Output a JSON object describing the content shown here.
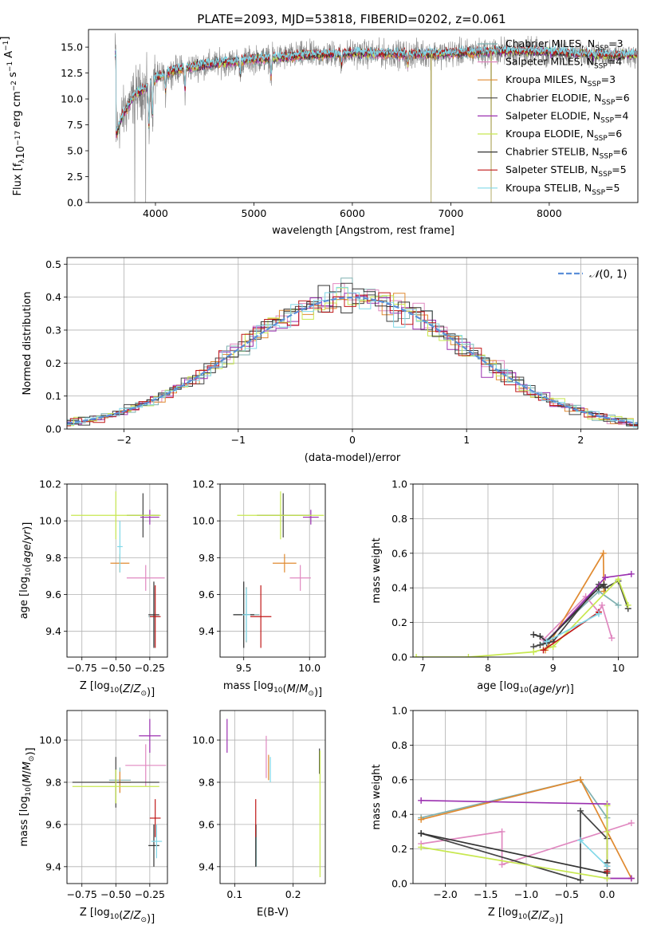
{
  "title": "PLATE=2093, MJD=53818, FIBERID=0202, z=0.061",
  "colors": {
    "Chabrier MILES": "#7fb0b0",
    "Salpeter MILES": "#e088c0",
    "Kroupa MILES": "#e08a30",
    "Chabrier ELODIE": "#444444",
    "Salpeter ELODIE": "#9b30b0",
    "Kroupa ELODIE": "#c8e850",
    "Chabrier STELIB": "#333333",
    "Salpeter STELIB": "#c01818",
    "Kroupa STELIB": "#80d8e8",
    "data": "#808080",
    "normal": "#5b8fd8"
  },
  "legend_labels": [
    {
      "pre": "Chabrier MILES, N",
      "sub": "SSP",
      "post": "=3"
    },
    {
      "pre": "Salpeter MILES, N",
      "sub": "SSP",
      "post": "=4"
    },
    {
      "pre": "Kroupa MILES, N",
      "sub": "SSP",
      "post": "=3"
    },
    {
      "pre": "Chabrier ELODIE, N",
      "sub": "SSP",
      "post": "=6"
    },
    {
      "pre": "Salpeter ELODIE, N",
      "sub": "SSP",
      "post": "=4"
    },
    {
      "pre": "Kroupa ELODIE, N",
      "sub": "SSP",
      "post": "=6"
    },
    {
      "pre": "Chabrier STELIB, N",
      "sub": "SSP",
      "post": "=6"
    },
    {
      "pre": "Salpeter STELIB, N",
      "sub": "SSP",
      "post": "=5"
    },
    {
      "pre": "Kroupa STELIB, N",
      "sub": "SSP",
      "post": "=5"
    }
  ],
  "chart_data": [
    {
      "id": "spectrum",
      "type": "line",
      "xlabel": "wavelength [Angstrom, rest frame]",
      "ylabel": "Flux [f_λ 10^-17 erg cm^-2 s^-1 A^-1]",
      "xlim": [
        3320,
        8900
      ],
      "ylim": [
        0,
        16.7
      ],
      "xticks": [
        4000,
        5000,
        6000,
        7000,
        8000
      ],
      "yticks": [
        "0.0",
        "2.5",
        "5.0",
        "7.5",
        "10.0",
        "12.5",
        "15.0"
      ],
      "ytick_values": [
        0,
        2.5,
        5,
        7.5,
        10,
        12.5,
        15
      ],
      "envelope": [
        [
          3600,
          6.5
        ],
        [
          3650,
          8
        ],
        [
          3700,
          9
        ],
        [
          3800,
          10.5
        ],
        [
          3900,
          11
        ],
        [
          4000,
          12
        ],
        [
          4200,
          12.8
        ],
        [
          4500,
          13.3
        ],
        [
          5000,
          13.8
        ],
        [
          5500,
          14.2
        ],
        [
          6000,
          14.4
        ],
        [
          6500,
          14.3
        ],
        [
          7000,
          14.4
        ],
        [
          7500,
          14.6
        ],
        [
          8000,
          14.5
        ],
        [
          8500,
          14.2
        ],
        [
          8890,
          14.2
        ]
      ],
      "dropouts": [
        [
          3790,
          0
        ],
        [
          3900,
          0
        ],
        [
          6800,
          0
        ],
        [
          7410,
          0
        ]
      ],
      "grid": false,
      "legend_position": "upper-right"
    },
    {
      "id": "histogram",
      "type": "step",
      "xlabel": "(data-model)/error",
      "ylabel": "Normed distribution",
      "xlim": [
        -2.5,
        2.5
      ],
      "ylim": [
        0,
        0.52
      ],
      "xticks": [
        -2,
        -1,
        0,
        1,
        2
      ],
      "yticks": [
        "0.0",
        "0.1",
        "0.2",
        "0.3",
        "0.4",
        "0.5"
      ],
      "ytick_values": [
        0,
        0.1,
        0.2,
        0.3,
        0.4,
        0.5
      ],
      "bin_width": 0.1,
      "normal_label": "N(0,1)",
      "grid": true,
      "legend_position": "upper-right"
    },
    {
      "id": "age_vs_Z",
      "type": "errorbar",
      "xlabel": "Z [log10(Z/Z⊙)]",
      "ylabel": "age [log10(age/yr)]",
      "xlim": [
        -0.86,
        -0.12
      ],
      "ylim": [
        9.26,
        10.2
      ],
      "xticks": [
        "-0.75",
        "-0.50",
        "-0.25"
      ],
      "xtick_values": [
        -0.75,
        -0.5,
        -0.25
      ],
      "yticks": [
        "9.4",
        "9.6",
        "9.8",
        "10.0",
        "10.2"
      ],
      "ytick_values": [
        9.4,
        9.6,
        9.8,
        10.0,
        10.2
      ],
      "points": [
        {
          "model": "Chabrier MILES",
          "x": -0.22,
          "y": 9.48,
          "xerr": 0.04,
          "yerr": 0.16
        },
        {
          "model": "Salpeter MILES",
          "x": -0.28,
          "y": 9.69,
          "xerr": 0.14,
          "yerr": 0.07
        },
        {
          "model": "Kroupa MILES",
          "x": -0.47,
          "y": 9.77,
          "xerr": 0.07,
          "yerr": 0.05
        },
        {
          "model": "Chabrier ELODIE",
          "x": -0.3,
          "y": 10.03,
          "xerr": 0.12,
          "yerr": 0.12
        },
        {
          "model": "Salpeter ELODIE",
          "x": -0.25,
          "y": 10.02,
          "xerr": 0.07,
          "yerr": 0.04
        },
        {
          "model": "Kroupa ELODIE",
          "x": -0.5,
          "y": 10.03,
          "xerr": 0.33,
          "yerr": 0.13
        },
        {
          "model": "Chabrier STELIB",
          "x": -0.22,
          "y": 9.49,
          "xerr": 0.04,
          "yerr": 0.18
        },
        {
          "model": "Salpeter STELIB",
          "x": -0.21,
          "y": 9.48,
          "xerr": 0.04,
          "yerr": 0.17
        },
        {
          "model": "Kroupa STELIB",
          "x": -0.47,
          "y": 9.86,
          "xerr": 0.02,
          "yerr": 0.14
        }
      ]
    },
    {
      "id": "age_vs_mass",
      "type": "errorbar",
      "xlabel": "mass [log10(M/M⊙)]",
      "ylabel": "",
      "xlim": [
        9.32,
        10.12
      ],
      "ylim": [
        9.26,
        10.2
      ],
      "xticks": [
        "9.5",
        "10.0"
      ],
      "xtick_values": [
        9.5,
        10.0
      ],
      "yticks": [
        "9.4",
        "9.6",
        "9.8",
        "10.0",
        "10.2"
      ],
      "ytick_values": [
        9.4,
        9.6,
        9.8,
        10.0,
        10.2
      ],
      "points": [
        {
          "model": "Chabrier MILES",
          "x": 9.52,
          "y": 9.49,
          "xerr": 0.1,
          "yerr": 0.15
        },
        {
          "model": "Salpeter MILES",
          "x": 9.93,
          "y": 9.69,
          "xerr": 0.08,
          "yerr": 0.07
        },
        {
          "model": "Kroupa MILES",
          "x": 9.81,
          "y": 9.77,
          "xerr": 0.09,
          "yerr": 0.05
        },
        {
          "model": "Chabrier ELODIE",
          "x": 9.8,
          "y": 10.03,
          "xerr": 0.2,
          "yerr": 0.12
        },
        {
          "model": "Salpeter ELODIE",
          "x": 10.01,
          "y": 10.02,
          "xerr": 0.06,
          "yerr": 0.04
        },
        {
          "model": "Kroupa ELODIE",
          "x": 9.78,
          "y": 10.03,
          "xerr": 0.33,
          "yerr": 0.13
        },
        {
          "model": "Chabrier STELIB",
          "x": 9.5,
          "y": 9.49,
          "xerr": 0.08,
          "yerr": 0.18
        },
        {
          "model": "Salpeter STELIB",
          "x": 9.63,
          "y": 9.48,
          "xerr": 0.08,
          "yerr": 0.17
        },
        {
          "model": "Kroupa STELIB",
          "x": 9.52,
          "y": 9.49,
          "xerr": 0.03,
          "yerr": 0.14
        }
      ]
    },
    {
      "id": "weight_vs_age",
      "type": "line",
      "xlabel": "age [log10(age/yr)]",
      "ylabel": "mass weight",
      "xlim": [
        6.85,
        10.3
      ],
      "ylim": [
        0,
        1.0
      ],
      "xticks": [
        "7",
        "8",
        "9",
        "10"
      ],
      "xtick_values": [
        7,
        8,
        9,
        10
      ],
      "yticks": [
        "0.0",
        "0.2",
        "0.4",
        "0.6",
        "0.8",
        "1.0"
      ],
      "ytick_values": [
        0,
        0.2,
        0.4,
        0.6,
        0.8,
        1.0
      ],
      "series": [
        {
          "model": "Chabrier MILES",
          "x": [
            8.85,
            9.7,
            10.0
          ],
          "y": [
            0.08,
            0.38,
            0.3
          ]
        },
        {
          "model": "Salpeter MILES",
          "x": [
            8.85,
            9.5,
            9.7,
            9.75,
            9.9
          ],
          "y": [
            0.1,
            0.35,
            0.26,
            0.3,
            0.11
          ]
        },
        {
          "model": "Kroupa MILES",
          "x": [
            8.88,
            9.77,
            9.78
          ],
          "y": [
            0.04,
            0.6,
            0.38
          ]
        },
        {
          "model": "Chabrier ELODIE",
          "x": [
            8.7,
            8.8,
            8.9,
            9.0,
            9.7,
            9.8,
            10.0,
            10.15
          ],
          "y": [
            0.06,
            0.07,
            0.08,
            0.09,
            0.42,
            0.4,
            0.44,
            0.28
          ]
        },
        {
          "model": "Salpeter ELODIE",
          "x": [
            8.9,
            9.8,
            10.2
          ],
          "y": [
            0.09,
            0.46,
            0.48
          ]
        },
        {
          "model": "Kroupa ELODIE",
          "x": [
            6.9,
            7.7,
            8.7,
            9.0,
            10.0,
            10.15
          ],
          "y": [
            0.0,
            0.0,
            0.03,
            0.06,
            0.45,
            0.3
          ]
        },
        {
          "model": "Chabrier STELIB",
          "x": [
            8.7,
            8.8,
            8.9,
            9.7,
            9.78
          ],
          "y": [
            0.13,
            0.12,
            0.09,
            0.4,
            0.42
          ]
        },
        {
          "model": "Salpeter STELIB",
          "x": [
            8.85,
            9.7
          ],
          "y": [
            0.04,
            0.26
          ]
        },
        {
          "model": "Kroupa STELIB",
          "x": [
            8.9,
            9.7
          ],
          "y": [
            0.09,
            0.25
          ]
        }
      ]
    },
    {
      "id": "mass_vs_Z",
      "type": "errorbar",
      "xlabel": "Z [log10(Z/Z⊙)]",
      "ylabel": "mass [log10(M/M⊙)]",
      "xlim": [
        -0.86,
        -0.12
      ],
      "ylim": [
        9.32,
        10.14
      ],
      "xticks": [
        "-0.75",
        "-0.50",
        "-0.25"
      ],
      "xtick_values": [
        -0.75,
        -0.5,
        -0.25
      ],
      "yticks": [
        "9.4",
        "9.6",
        "9.8",
        "10.0"
      ],
      "ytick_values": [
        9.4,
        9.6,
        9.8,
        10.0
      ],
      "points": [
        {
          "model": "Chabrier MILES",
          "x": -0.47,
          "y": 9.81,
          "xerr": 0.08,
          "yerr": 0.06
        },
        {
          "model": "Salpeter MILES",
          "x": -0.28,
          "y": 9.88,
          "xerr": 0.15,
          "yerr": 0.1
        },
        {
          "model": "Kroupa MILES",
          "x": -0.47,
          "y": 9.8,
          "xerr": 0.08,
          "yerr": 0.05
        },
        {
          "model": "Chabrier ELODIE",
          "x": -0.5,
          "y": 9.8,
          "xerr": 0.32,
          "yerr": 0.12
        },
        {
          "model": "Salpeter ELODIE",
          "x": -0.25,
          "y": 10.02,
          "xerr": 0.08,
          "yerr": 0.08
        },
        {
          "model": "Kroupa ELODIE",
          "x": -0.5,
          "y": 9.78,
          "xerr": 0.32,
          "yerr": 0.08
        },
        {
          "model": "Chabrier STELIB",
          "x": -0.22,
          "y": 9.5,
          "xerr": 0.04,
          "yerr": 0.1
        },
        {
          "model": "Salpeter STELIB",
          "x": -0.21,
          "y": 9.63,
          "xerr": 0.04,
          "yerr": 0.09
        },
        {
          "model": "Kroupa STELIB",
          "x": -0.2,
          "y": 9.52,
          "xerr": 0.04,
          "yerr": 0.08
        }
      ]
    },
    {
      "id": "mass_vs_ebv",
      "type": "errorbar",
      "xlabel": "E(B-V)",
      "ylabel": "",
      "xlim": [
        0.075,
        0.255
      ],
      "ylim": [
        9.32,
        10.14
      ],
      "xticks": [
        "0.1",
        "0.2"
      ],
      "xtick_values": [
        0.1,
        0.2
      ],
      "yticks": [
        "9.4",
        "9.6",
        "9.8",
        "10.0"
      ],
      "ytick_values": [
        9.4,
        9.6,
        9.8,
        10.0
      ],
      "points": [
        {
          "model": "Chabrier MILES",
          "x": 0.137,
          "y": 9.5,
          "xerr": 0,
          "yerr": 0.1
        },
        {
          "model": "Salpeter MILES",
          "x": 0.154,
          "y": 9.92,
          "xerr": 0,
          "yerr": 0.1
        },
        {
          "model": "Kroupa MILES",
          "x": 0.158,
          "y": 9.87,
          "xerr": 0,
          "yerr": 0.06
        },
        {
          "model": "Chabrier ELODIE",
          "x": 0.245,
          "y": 9.9,
          "xerr": 0,
          "yerr": 0.06
        },
        {
          "model": "Salpeter ELODIE",
          "x": 0.087,
          "y": 10.02,
          "xerr": 0,
          "yerr": 0.08
        },
        {
          "model": "Kroupa ELODIE",
          "x": 0.246,
          "y": 9.65,
          "xerr": 0,
          "yerr": 0.3
        },
        {
          "model": "Chabrier STELIB",
          "x": 0.136,
          "y": 9.5,
          "xerr": 0,
          "yerr": 0.1
        },
        {
          "model": "Salpeter STELIB",
          "x": 0.136,
          "y": 9.63,
          "xerr": 0,
          "yerr": 0.09
        },
        {
          "model": "Kroupa STELIB",
          "x": 0.161,
          "y": 9.86,
          "xerr": 0,
          "yerr": 0.06
        }
      ]
    },
    {
      "id": "weight_vs_Z",
      "type": "line",
      "xlabel": "Z [log10(Z/Z⊙)]",
      "ylabel": "mass weight",
      "xlim": [
        -2.4,
        0.38
      ],
      "ylim": [
        0,
        1.0
      ],
      "xticks": [
        "-2.0",
        "-1.5",
        "-1.0",
        "-0.5",
        "0.0"
      ],
      "xtick_values": [
        -2.0,
        -1.5,
        -1.0,
        -0.5,
        0.0
      ],
      "yticks": [
        "0.0",
        "0.2",
        "0.4",
        "0.6",
        "0.8",
        "1.0"
      ],
      "ytick_values": [
        0,
        0.2,
        0.4,
        0.6,
        0.8,
        1.0
      ],
      "series": [
        {
          "model": "Chabrier MILES",
          "x": [
            -2.3,
            -0.33,
            0.0,
            0.0
          ],
          "y": [
            0.38,
            0.6,
            0.38,
            0.1
          ]
        },
        {
          "model": "Salpeter MILES",
          "x": [
            -2.3,
            -1.3,
            -1.3,
            0.3
          ],
          "y": [
            0.23,
            0.3,
            0.11,
            0.35
          ]
        },
        {
          "model": "Kroupa MILES",
          "x": [
            -2.3,
            -0.33,
            0.3
          ],
          "y": [
            0.37,
            0.6,
            0.03
          ]
        },
        {
          "model": "Chabrier ELODIE",
          "x": [
            -2.3,
            -0.33,
            -0.33,
            0.0,
            0.0
          ],
          "y": [
            0.29,
            0.02,
            0.42,
            0.26,
            0.08
          ]
        },
        {
          "model": "Salpeter ELODIE",
          "x": [
            -2.3,
            0.0,
            0.0,
            0.3
          ],
          "y": [
            0.48,
            0.46,
            0.03,
            0.03
          ]
        },
        {
          "model": "Kroupa ELODIE",
          "x": [
            -2.3,
            0.0,
            0.0,
            0.0
          ],
          "y": [
            0.21,
            0.03,
            0.45,
            0.3
          ]
        },
        {
          "model": "Chabrier STELIB",
          "x": [
            -2.3,
            0.0,
            0.0
          ],
          "y": [
            0.29,
            0.06,
            0.12
          ]
        },
        {
          "model": "Salpeter STELIB",
          "x": [
            0.0,
            0.0
          ],
          "y": [
            0.1,
            0.07
          ]
        },
        {
          "model": "Kroupa STELIB",
          "x": [
            -0.33,
            0.0
          ],
          "y": [
            0.25,
            0.1
          ]
        }
      ]
    }
  ]
}
